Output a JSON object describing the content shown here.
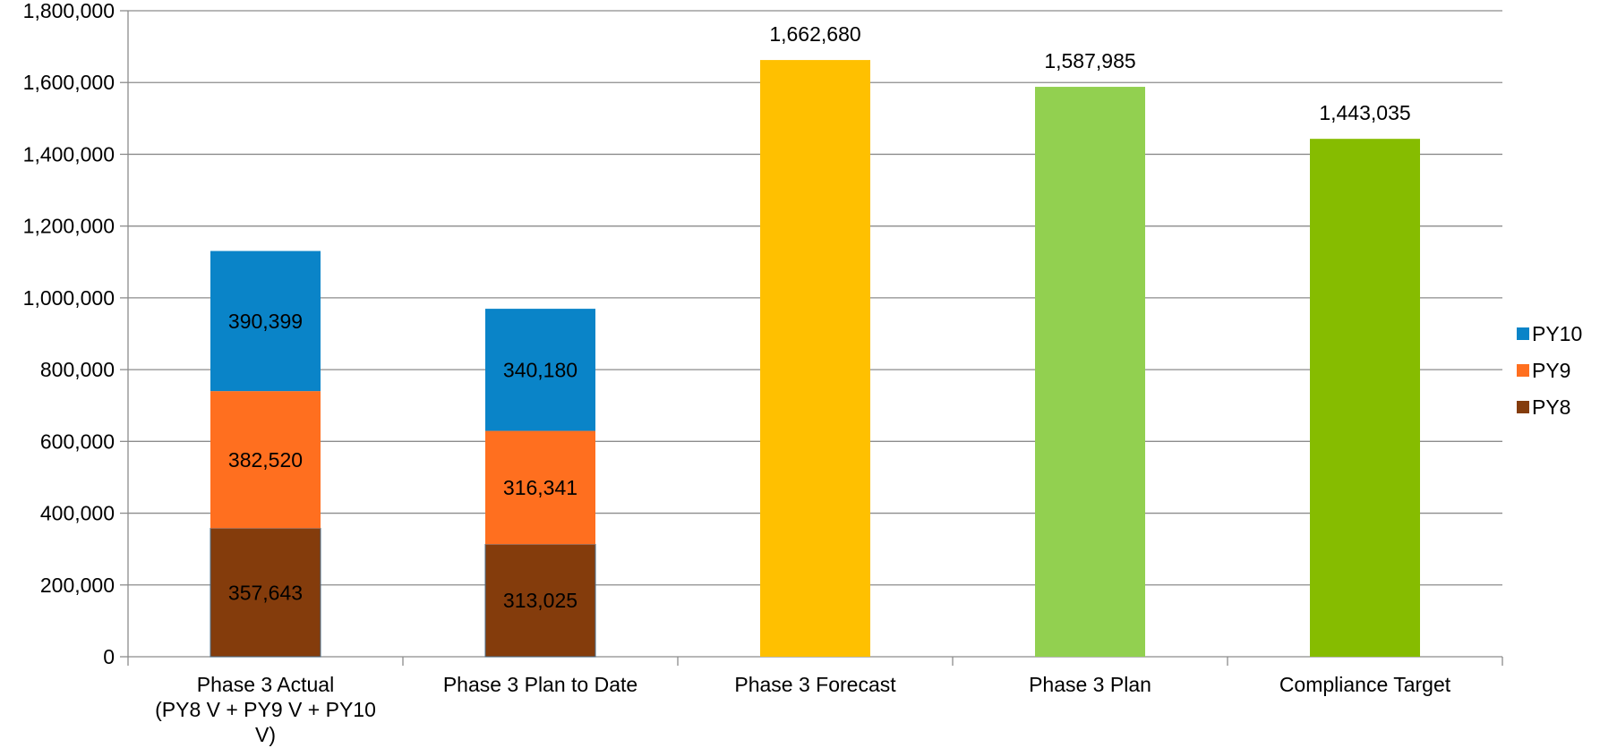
{
  "chart_data": {
    "type": "bar",
    "stacked": true,
    "categories": [
      [
        "Phase 3 Actual",
        "(PY8 V + PY9 V + PY10",
        "V)"
      ],
      [
        "Phase 3 Plan to Date"
      ],
      [
        "Phase 3 Forecast"
      ],
      [
        "Phase 3 Plan"
      ],
      [
        "Compliance Target"
      ]
    ],
    "stacked_series": [
      {
        "name": "PY8",
        "color": "#843C0C",
        "values": [
          357643,
          313025,
          null,
          null,
          null
        ],
        "labels": [
          "357,643",
          "313,025",
          "",
          "",
          ""
        ]
      },
      {
        "name": "PY9",
        "color": "#FF6F1F",
        "values": [
          382520,
          316341,
          null,
          null,
          null
        ],
        "labels": [
          "382,520",
          "316,341",
          "",
          "",
          ""
        ]
      },
      {
        "name": "PY10",
        "color": "#0A84C8",
        "values": [
          390399,
          340180,
          null,
          null,
          null
        ],
        "labels": [
          "390,399",
          "340,180",
          "",
          "",
          ""
        ]
      }
    ],
    "single_bars": [
      {
        "category_index": 2,
        "value": 1662680,
        "label": "1,662,680",
        "color": "#FFC000"
      },
      {
        "category_index": 3,
        "value": 1587985,
        "label": "1,587,985",
        "color": "#92D050"
      },
      {
        "category_index": 4,
        "value": 1443035,
        "label": "1,443,035",
        "color": "#86BC00"
      }
    ],
    "legend": {
      "placement": "right",
      "items": [
        {
          "name": "PY10",
          "color": "#0A84C8"
        },
        {
          "name": "PY9",
          "color": "#FF6F1F"
        },
        {
          "name": "PY8",
          "color": "#843C0C"
        }
      ]
    },
    "ylim": [
      0,
      1800000
    ],
    "yticks": [
      0,
      200000,
      400000,
      600000,
      800000,
      1000000,
      1200000,
      1400000,
      1600000,
      1800000
    ],
    "ytick_labels": [
      "0",
      "200,000",
      "400,000",
      "600,000",
      "800,000",
      "1,000,000",
      "1,200,000",
      "1,400,000",
      "1,600,000",
      "1,800,000"
    ],
    "grid": true,
    "colors": {
      "grid": "#8C8C8C",
      "axis": "#8C8C8C",
      "segment_border": "#4A6E8A"
    }
  }
}
